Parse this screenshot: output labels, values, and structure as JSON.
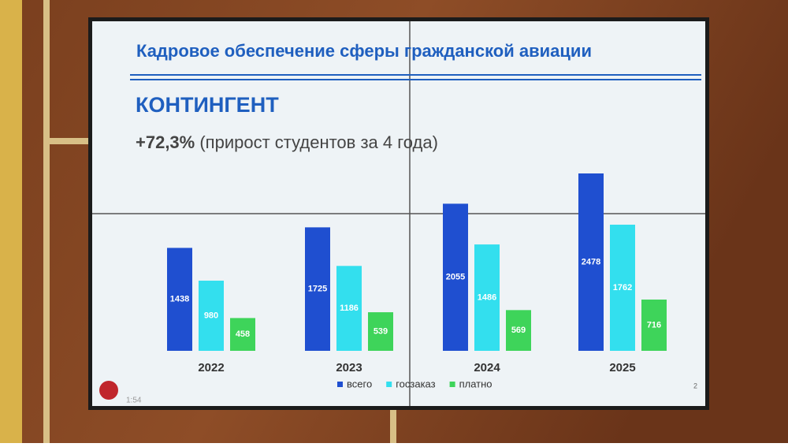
{
  "chart_data": {
    "type": "bar",
    "title": "Кадровое обеспечение сферы гражданской авиации",
    "heading": "КОНТИНГЕНТ",
    "highlight": "+72,3%",
    "subtitle": "(прирост студентов за 4 года)",
    "categories": [
      "2022",
      "2023",
      "2024",
      "2025"
    ],
    "series": [
      {
        "name": "всего",
        "color": "#1f4fd0",
        "values": [
          1438,
          1725,
          2055,
          2478
        ]
      },
      {
        "name": "госзаказ",
        "color": "#33dfee",
        "values": [
          980,
          1186,
          1486,
          1762
        ]
      },
      {
        "name": "платно",
        "color": "#3ed45a",
        "values": [
          458,
          539,
          569,
          716
        ]
      }
    ],
    "legend": "bottom",
    "page_number": "2",
    "timer": "1:54"
  }
}
